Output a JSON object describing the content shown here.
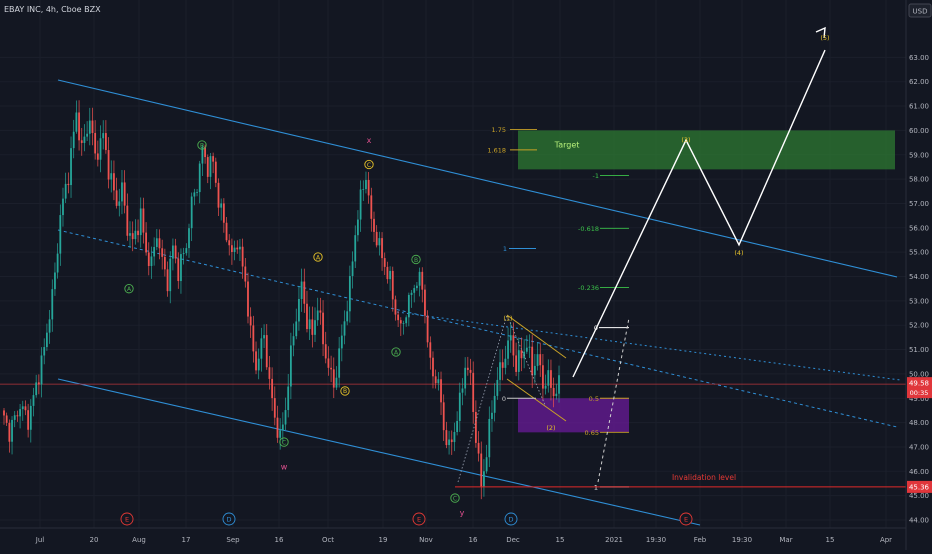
{
  "header": {
    "title": "EBAY INC, 4h, Cboe BZX"
  },
  "chart_data": {
    "type": "candlestick",
    "symbol": "EBAY INC",
    "interval": "4h",
    "exchange": "Cboe BZX",
    "currency": "USD",
    "ylim": [
      44,
      64.4
    ],
    "y_ticks": [
      44,
      45,
      46,
      47,
      48,
      49,
      50,
      51,
      52,
      53,
      54,
      55,
      56,
      57,
      58,
      59,
      60,
      61,
      62,
      63
    ],
    "x_ticks": [
      "Jul",
      "20",
      "Aug",
      "17",
      "Sep",
      "16",
      "Oct",
      "19",
      "Nov",
      "16",
      "Dec",
      "15",
      "2021",
      "19:30",
      "Feb",
      "19:30",
      "Mar",
      "15",
      "Apr"
    ],
    "price_path": [
      [
        0,
        48.5
      ],
      [
        3,
        47.6
      ],
      [
        7,
        48.7
      ],
      [
        10,
        48.1
      ],
      [
        13,
        49.5
      ],
      [
        16,
        51
      ],
      [
        20,
        54
      ],
      [
        22,
        56.5
      ],
      [
        25,
        58.2
      ],
      [
        28,
        60.7
      ],
      [
        30,
        59.2
      ],
      [
        33,
        60.5
      ],
      [
        35,
        58.9
      ],
      [
        38,
        59.8
      ],
      [
        40,
        58.4
      ],
      [
        43,
        57
      ],
      [
        45,
        57.6
      ],
      [
        47,
        56
      ],
      [
        49,
        55.4
      ],
      [
        52,
        56.5
      ],
      [
        54,
        55
      ],
      [
        56,
        54.5
      ],
      [
        58,
        55.8
      ],
      [
        60,
        54.6
      ],
      [
        62,
        53.8
      ],
      [
        64,
        55.2
      ],
      [
        66,
        54.2
      ],
      [
        69,
        55.3
      ],
      [
        71,
        57
      ],
      [
        73,
        57.8
      ],
      [
        75,
        59.2
      ],
      [
        77,
        58.5
      ],
      [
        79,
        58.7
      ],
      [
        81,
        57.1
      ],
      [
        83,
        56.2
      ],
      [
        86,
        54.8
      ],
      [
        88,
        55.5
      ],
      [
        91,
        53.8
      ],
      [
        93,
        51.6
      ],
      [
        95,
        50.3
      ],
      [
        98,
        51.6
      ],
      [
        100,
        49.6
      ],
      [
        102,
        48.2
      ],
      [
        104,
        47.3
      ],
      [
        106,
        48.6
      ],
      [
        108,
        50.8
      ],
      [
        110,
        52.4
      ],
      [
        112,
        53.6
      ],
      [
        114,
        52.2
      ],
      [
        116,
        51.6
      ],
      [
        118,
        52.9
      ],
      [
        120,
        51.3
      ],
      [
        122,
        50.3
      ],
      [
        124,
        49.5
      ],
      [
        126,
        50.8
      ],
      [
        128,
        52.2
      ],
      [
        130,
        53.6
      ],
      [
        132,
        55.8
      ],
      [
        134,
        57.2
      ],
      [
        136,
        58.2
      ],
      [
        138,
        56.2
      ],
      [
        140,
        55.6
      ],
      [
        142,
        54.8
      ],
      [
        145,
        53.8
      ],
      [
        147,
        52.6
      ],
      [
        149,
        51.8
      ],
      [
        151,
        52.6
      ],
      [
        153,
        53.3
      ],
      [
        155,
        53.9
      ],
      [
        157,
        53.6
      ],
      [
        160,
        50.3
      ],
      [
        163,
        49.6
      ],
      [
        165,
        47.8
      ],
      [
        167,
        46.9
      ],
      [
        169,
        47.7
      ],
      [
        171,
        48.8
      ],
      [
        173,
        50.4
      ],
      [
        175,
        49.8
      ],
      [
        177,
        47.4
      ],
      [
        179,
        45.4
      ],
      [
        181,
        46.8
      ],
      [
        183,
        48.6
      ],
      [
        185,
        49.8
      ],
      [
        188,
        50.8
      ],
      [
        190,
        51.5
      ],
      [
        192,
        50.3
      ],
      [
        194,
        50.8
      ],
      [
        196,
        51.2
      ],
      [
        198,
        50.2
      ],
      [
        200,
        50.7
      ],
      [
        202,
        49.6
      ],
      [
        204,
        49.8
      ],
      [
        206,
        49.2
      ],
      [
        208,
        49.5
      ]
    ],
    "last_price": "49.58",
    "countdown": "00:35",
    "low_price_marker": "45.36",
    "fib_levels": [
      {
        "label": "1.75",
        "value": 60.04
      },
      {
        "label": "1.618",
        "value": 59.2
      },
      {
        "label": "1",
        "value": 58.1
      },
      {
        "label": "-1",
        "value": 58.15
      },
      {
        "label": "-0.618",
        "value": 55.98
      },
      {
        "label": "1",
        "value": 55.15
      },
      {
        "label": "-0.236",
        "value": 53.55
      },
      {
        "label": "0",
        "value": 51.9
      },
      {
        "label": "0",
        "value": 49.0
      },
      {
        "label": "0.5",
        "value": 49.0
      },
      {
        "label": "0.65",
        "value": 47.6
      },
      {
        "label": "1",
        "value": 45.36
      }
    ],
    "zones": [
      {
        "label": "Target",
        "from": 58.4,
        "to": 60.0
      },
      {
        "label": "",
        "from": 47.6,
        "to": 49.0
      }
    ],
    "projection_path": [
      {
        "label": "(3)",
        "value": 59.6
      },
      {
        "label": "(4)",
        "value": 55.3
      },
      {
        "label": "(5)",
        "value": 63.3
      }
    ],
    "wave_labels": [
      {
        "label": "A",
        "value": 53.5
      },
      {
        "label": "B",
        "value": 59.4
      },
      {
        "label": "C",
        "value": 47.2
      },
      {
        "label": "w",
        "value": 46.2
      },
      {
        "label": "A",
        "value": 54.8
      },
      {
        "label": "B",
        "value": 49.3
      },
      {
        "label": "C",
        "value": 58.6
      },
      {
        "label": "x",
        "value": 59.6
      },
      {
        "label": "A",
        "value": 50.9
      },
      {
        "label": "B",
        "value": 54.7
      },
      {
        "label": "C",
        "value": 44.9
      },
      {
        "label": "y",
        "value": 44.3
      },
      {
        "label": "(1)",
        "value": 52.3
      },
      {
        "label": "(2)",
        "value": 47.8
      }
    ],
    "event_markers": [
      "E",
      "D",
      "E",
      "D",
      "E"
    ],
    "annotations": [
      "Target",
      "Invalidation level"
    ]
  }
}
